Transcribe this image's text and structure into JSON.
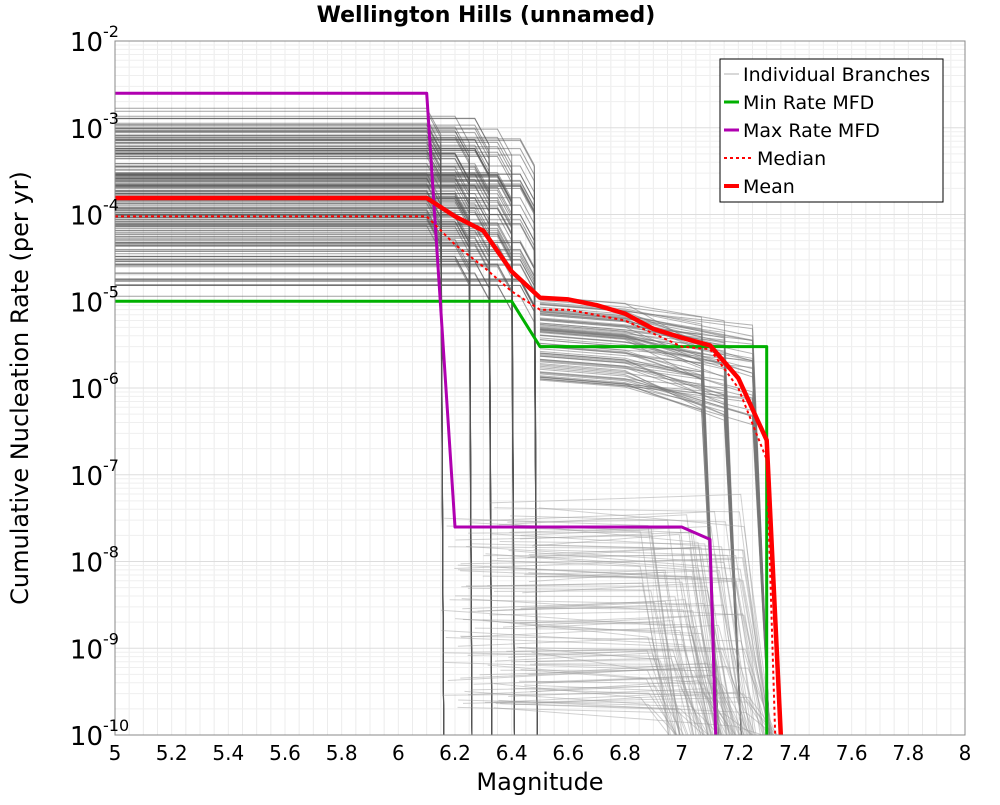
{
  "chart_data": {
    "type": "line",
    "title": "Wellington Hills (unnamed)",
    "xlabel": "Magnitude",
    "ylabel": "Cumulative Nucleation Rate (per yr)",
    "xlim": [
      5,
      8
    ],
    "ylim": [
      1e-10,
      0.01
    ],
    "yscale": "log",
    "grid": true,
    "legend_position": "top-right",
    "x_ticks": [
      "5",
      "5.2",
      "5.4",
      "5.6",
      "5.8",
      "6",
      "6.2",
      "6.4",
      "6.6",
      "6.8",
      "7",
      "7.2",
      "7.4",
      "7.6",
      "7.8",
      "8"
    ],
    "y_ticks": [
      {
        "base": "10",
        "exp": "-2",
        "value": 0.01
      },
      {
        "base": "10",
        "exp": "-3",
        "value": 0.001
      },
      {
        "base": "10",
        "exp": "-4",
        "value": 0.0001
      },
      {
        "base": "10",
        "exp": "-5",
        "value": 1e-05
      },
      {
        "base": "10",
        "exp": "-6",
        "value": 1e-06
      },
      {
        "base": "10",
        "exp": "-7",
        "value": 1e-07
      },
      {
        "base": "10",
        "exp": "-8",
        "value": 1e-08
      },
      {
        "base": "10",
        "exp": "-9",
        "value": 1e-09
      },
      {
        "base": "10",
        "exp": "-10",
        "value": 1e-10
      }
    ],
    "legend": [
      {
        "label": "Individual Branches",
        "color": "#b0b0b0",
        "style": "thin"
      },
      {
        "label": "Min Rate MFD",
        "color": "#00b000",
        "style": "solid"
      },
      {
        "label": "Max Rate MFD",
        "color": "#b000b0",
        "style": "solid"
      },
      {
        "label": "Median",
        "color": "#ff0000",
        "style": "dotted"
      },
      {
        "label": "Mean",
        "color": "#ff0000",
        "style": "thick"
      }
    ],
    "series": [
      {
        "name": "Min Rate MFD",
        "color": "#00b000",
        "width": 3,
        "dash": "",
        "x": [
          5,
          6.4,
          6.5,
          7.3,
          7.3
        ],
        "y": [
          1e-05,
          1e-05,
          3e-06,
          3e-06,
          1e-10
        ]
      },
      {
        "name": "Max Rate MFD",
        "color": "#b000b0",
        "width": 3,
        "dash": "",
        "x": [
          5,
          6.1,
          6.2,
          7.0,
          7.1,
          7.12
        ],
        "y": [
          0.0025,
          0.0025,
          2.5e-08,
          2.5e-08,
          1.8e-08,
          1e-10
        ]
      },
      {
        "name": "Median",
        "color": "#ff0000",
        "width": 2,
        "dash": "3,3",
        "x": [
          5,
          6.1,
          6.2,
          6.3,
          6.4,
          6.5,
          6.6,
          6.8,
          7.0,
          7.1,
          7.2,
          7.3,
          7.33
        ],
        "y": [
          9.5e-05,
          9.5e-05,
          4.5e-05,
          2.5e-05,
          1.3e-05,
          8e-06,
          8e-06,
          6e-06,
          3e-06,
          2.8e-06,
          1e-06,
          1.5e-07,
          1e-10
        ]
      },
      {
        "name": "Mean",
        "color": "#ff0000",
        "width": 4.5,
        "dash": "",
        "x": [
          5,
          6.1,
          6.2,
          6.3,
          6.4,
          6.5,
          6.6,
          6.7,
          6.8,
          6.9,
          7.0,
          7.1,
          7.2,
          7.3,
          7.35
        ],
        "y": [
          0.000155,
          0.000155,
          9.5e-05,
          6.5e-05,
          2.2e-05,
          1.1e-05,
          1.05e-05,
          9e-06,
          7.2e-06,
          4.8e-06,
          3.8e-06,
          3.1e-06,
          1.3e-06,
          2.5e-07,
          1e-10
        ]
      }
    ],
    "branch_bands": [
      {
        "color": "#555555",
        "drop_x": 6.15,
        "rate_min": 5e-05,
        "rate_max": 0.0017,
        "floor": 1e-10,
        "count": 40
      },
      {
        "color": "#555555",
        "drop_x": 6.25,
        "rate_min": 3e-05,
        "rate_max": 0.0017,
        "floor": 1e-10,
        "count": 40
      },
      {
        "color": "#555555",
        "drop_x": 6.32,
        "rate_min": 2e-05,
        "rate_max": 0.0013,
        "floor": 1e-10,
        "count": 40
      },
      {
        "color": "#555555",
        "drop_x": 6.4,
        "rate_min": 1.5e-05,
        "rate_max": 0.0011,
        "floor": 1e-10,
        "count": 40
      },
      {
        "color": "#555555",
        "drop_x": 6.48,
        "rate_min": 1e-05,
        "rate_max": 0.0008,
        "floor": 1e-10,
        "count": 40
      },
      {
        "color": "#777777",
        "drop_x": 7.12,
        "rate_min": 1e-06,
        "rate_max": 1e-05,
        "floor": 1e-10,
        "count": 30
      },
      {
        "color": "#777777",
        "drop_x": 7.2,
        "rate_min": 1e-06,
        "rate_max": 1e-05,
        "floor": 1e-10,
        "count": 30
      },
      {
        "color": "#777777",
        "drop_x": 7.3,
        "rate_min": 1e-06,
        "rate_max": 8e-06,
        "floor": 1e-10,
        "count": 30
      }
    ]
  }
}
